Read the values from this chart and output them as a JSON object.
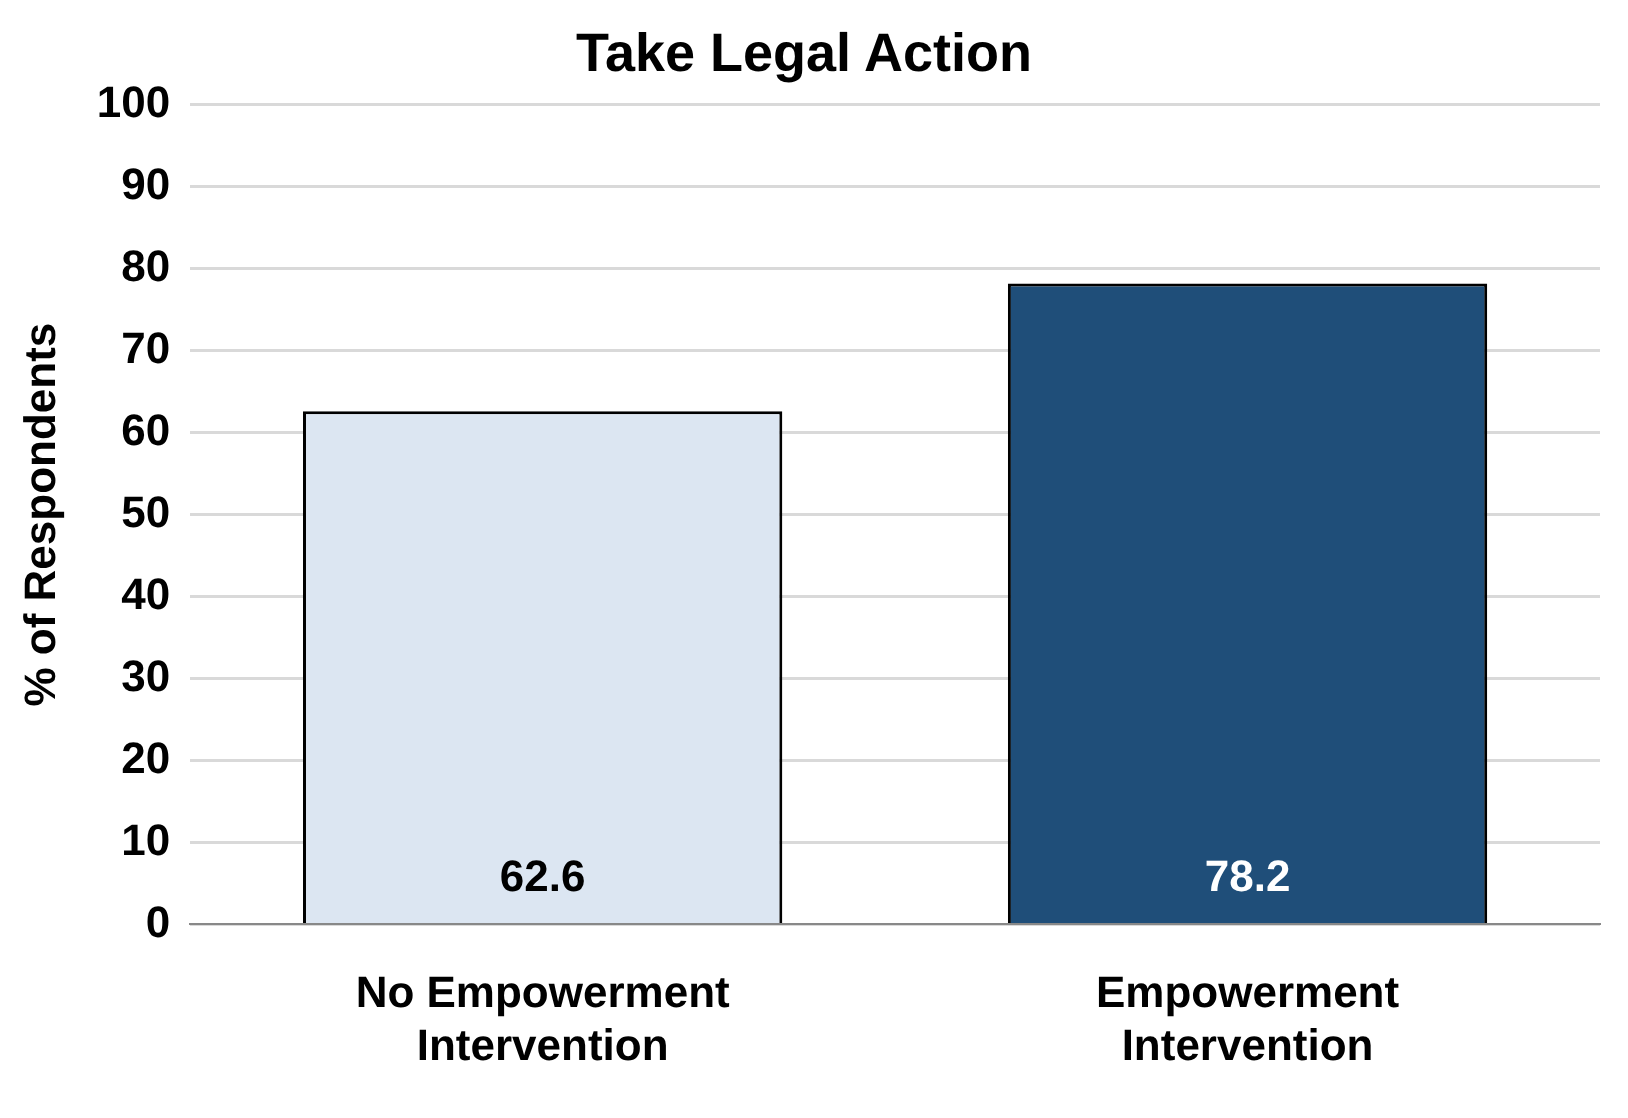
{
  "chart_data": {
    "type": "bar",
    "title": "Take Legal Action",
    "ylabel": "% of Respondents",
    "categories": [
      "No Empowerment Intervention",
      "Empowerment Intervention"
    ],
    "values": [
      62.6,
      78.2
    ],
    "colors": [
      "#dce6f2",
      "#1f4e79"
    ],
    "ylim": [
      0,
      100
    ],
    "yticks": [
      0,
      10,
      20,
      30,
      40,
      50,
      60,
      70,
      80,
      90,
      100
    ],
    "grid": "y",
    "data_labels": true
  }
}
